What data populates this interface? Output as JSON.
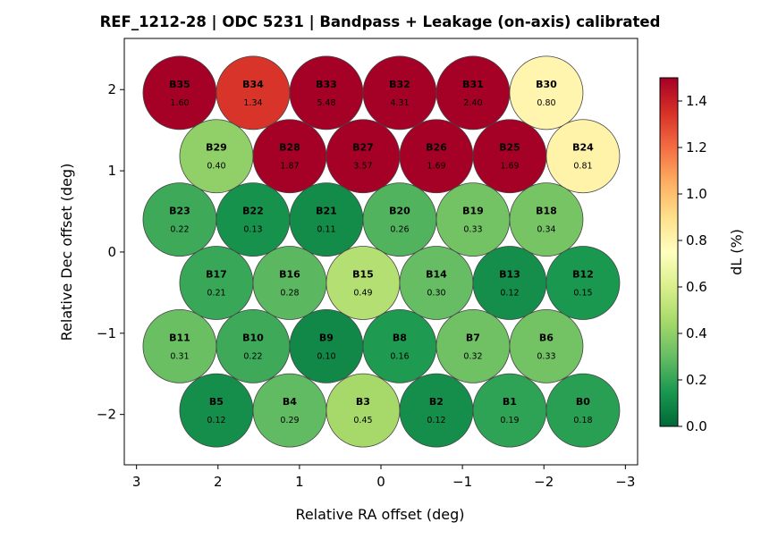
{
  "chart_data": {
    "type": "scatter",
    "title": "REF_1212-28  |  ODC 5231  |  Bandpass + Leakage (on-axis) calibrated",
    "xlabel": "Relative RA offset (deg)",
    "ylabel": "Relative Dec offset (deg)",
    "xlim": [
      3.15,
      -3.15
    ],
    "ylim": [
      -2.62,
      2.63
    ],
    "xticks": [
      3,
      2,
      1,
      0,
      -1,
      -2,
      -3
    ],
    "xtick_labels": [
      "3",
      "2",
      "1",
      "0",
      "−1",
      "−2",
      "−3"
    ],
    "yticks": [
      2,
      1,
      0,
      -1,
      -2
    ],
    "ytick_labels": [
      "2",
      "1",
      "0",
      "−1",
      "−2"
    ],
    "beam_radius_deg": 0.45,
    "colorbar": {
      "label": "dL  (%)",
      "colormap": "RdYlGn_r",
      "range": [
        0.0,
        1.5
      ],
      "ticks": [
        0.0,
        0.2,
        0.4,
        0.6,
        0.8,
        1.0,
        1.2,
        1.4
      ],
      "tick_labels": [
        "0.0",
        "0.2",
        "0.4",
        "0.6",
        "0.8",
        "1.0",
        "1.2",
        "1.4"
      ],
      "stops": [
        "#006837",
        "#1a9850",
        "#66bd63",
        "#a6d96a",
        "#d9ef8b",
        "#ffffbf",
        "#fee08b",
        "#fdae61",
        "#f46d43",
        "#d73027",
        "#a50026"
      ]
    },
    "beams": [
      {
        "name": "B35",
        "x": 2.47,
        "y": 1.96,
        "value": 1.6,
        "label": "1.60"
      },
      {
        "name": "B34",
        "x": 1.57,
        "y": 1.96,
        "value": 1.34,
        "label": "1.34"
      },
      {
        "name": "B33",
        "x": 0.67,
        "y": 1.96,
        "value": 5.48,
        "label": "5.48"
      },
      {
        "name": "B32",
        "x": -0.23,
        "y": 1.96,
        "value": 4.31,
        "label": "4.31"
      },
      {
        "name": "B31",
        "x": -1.13,
        "y": 1.96,
        "value": 2.4,
        "label": "2.40"
      },
      {
        "name": "B30",
        "x": -2.03,
        "y": 1.96,
        "value": 0.8,
        "label": "0.80"
      },
      {
        "name": "B29",
        "x": 2.02,
        "y": 1.18,
        "value": 0.4,
        "label": "0.40"
      },
      {
        "name": "B28",
        "x": 1.12,
        "y": 1.18,
        "value": 1.87,
        "label": "1.87"
      },
      {
        "name": "B27",
        "x": 0.22,
        "y": 1.18,
        "value": 3.57,
        "label": "3.57"
      },
      {
        "name": "B26",
        "x": -0.68,
        "y": 1.18,
        "value": 1.69,
        "label": "1.69"
      },
      {
        "name": "B25",
        "x": -1.58,
        "y": 1.18,
        "value": 1.69,
        "label": "1.69"
      },
      {
        "name": "B24",
        "x": -2.48,
        "y": 1.18,
        "value": 0.81,
        "label": "0.81"
      },
      {
        "name": "B23",
        "x": 2.47,
        "y": 0.4,
        "value": 0.22,
        "label": "0.22"
      },
      {
        "name": "B22",
        "x": 1.57,
        "y": 0.4,
        "value": 0.13,
        "label": "0.13"
      },
      {
        "name": "B21",
        "x": 0.67,
        "y": 0.4,
        "value": 0.11,
        "label": "0.11"
      },
      {
        "name": "B20",
        "x": -0.23,
        "y": 0.4,
        "value": 0.26,
        "label": "0.26"
      },
      {
        "name": "B19",
        "x": -1.13,
        "y": 0.4,
        "value": 0.33,
        "label": "0.33"
      },
      {
        "name": "B18",
        "x": -2.03,
        "y": 0.4,
        "value": 0.34,
        "label": "0.34"
      },
      {
        "name": "B17",
        "x": 2.02,
        "y": -0.38,
        "value": 0.21,
        "label": "0.21"
      },
      {
        "name": "B16",
        "x": 1.12,
        "y": -0.38,
        "value": 0.28,
        "label": "0.28"
      },
      {
        "name": "B15",
        "x": 0.22,
        "y": -0.38,
        "value": 0.49,
        "label": "0.49"
      },
      {
        "name": "B14",
        "x": -0.68,
        "y": -0.38,
        "value": 0.3,
        "label": "0.30"
      },
      {
        "name": "B13",
        "x": -1.58,
        "y": -0.38,
        "value": 0.12,
        "label": "0.12"
      },
      {
        "name": "B12",
        "x": -2.48,
        "y": -0.38,
        "value": 0.15,
        "label": "0.15"
      },
      {
        "name": "B11",
        "x": 2.47,
        "y": -1.16,
        "value": 0.31,
        "label": "0.31"
      },
      {
        "name": "B10",
        "x": 1.57,
        "y": -1.16,
        "value": 0.22,
        "label": "0.22"
      },
      {
        "name": "B9",
        "x": 0.67,
        "y": -1.16,
        "value": 0.1,
        "label": "0.10"
      },
      {
        "name": "B8",
        "x": -0.23,
        "y": -1.16,
        "value": 0.16,
        "label": "0.16"
      },
      {
        "name": "B7",
        "x": -1.13,
        "y": -1.16,
        "value": 0.32,
        "label": "0.32"
      },
      {
        "name": "B6",
        "x": -2.03,
        "y": -1.16,
        "value": 0.33,
        "label": "0.33"
      },
      {
        "name": "B5",
        "x": 2.02,
        "y": -1.95,
        "value": 0.12,
        "label": "0.12"
      },
      {
        "name": "B4",
        "x": 1.12,
        "y": -1.95,
        "value": 0.29,
        "label": "0.29"
      },
      {
        "name": "B3",
        "x": 0.22,
        "y": -1.95,
        "value": 0.45,
        "label": "0.45"
      },
      {
        "name": "B2",
        "x": -0.68,
        "y": -1.95,
        "value": 0.12,
        "label": "0.12"
      },
      {
        "name": "B1",
        "x": -1.58,
        "y": -1.95,
        "value": 0.19,
        "label": "0.19"
      },
      {
        "name": "B0",
        "x": -2.48,
        "y": -1.95,
        "value": 0.18,
        "label": "0.18"
      }
    ]
  }
}
